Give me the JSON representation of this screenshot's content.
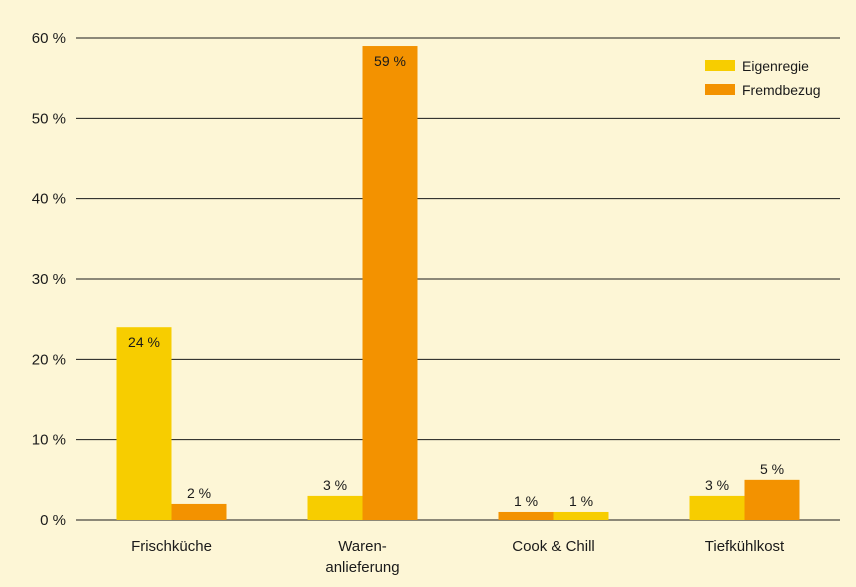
{
  "chart_data": {
    "type": "bar",
    "categories": [
      [
        "Frischküche"
      ],
      [
        "Waren-",
        "anlieferung"
      ],
      [
        "Cook & Chill"
      ],
      [
        "Tiefkühlkost"
      ]
    ],
    "series": [
      {
        "name": "Eigenregie",
        "values": [
          24,
          3,
          1,
          3
        ],
        "labels": [
          "24 %",
          "3 %",
          "1 %",
          "3 %"
        ],
        "color": "#f7cd00"
      },
      {
        "name": "Fremdbezug",
        "values": [
          2,
          59,
          1,
          5
        ],
        "labels": [
          "2 %",
          "59 %",
          "1 %",
          "5 %"
        ],
        "color": "#f39200"
      }
    ],
    "bar_order": [
      [
        "Eigenregie",
        "Fremdbezug"
      ],
      [
        "Eigenregie",
        "Fremdbezug"
      ],
      [
        "Fremdbezug",
        "Eigenregie"
      ],
      [
        "Eigenregie",
        "Fremdbezug"
      ]
    ],
    "label_inside": [
      [
        true,
        false
      ],
      [
        false,
        true
      ],
      [
        false,
        false
      ],
      [
        false,
        false
      ]
    ],
    "y_ticks": [
      "0 %",
      "10 %",
      "20 %",
      "30 %",
      "40 %",
      "50 %",
      "60 %"
    ],
    "ylim": [
      0,
      60
    ],
    "grid": true,
    "legend_position": "top-right",
    "title": "",
    "xlabel": "",
    "ylabel": ""
  }
}
